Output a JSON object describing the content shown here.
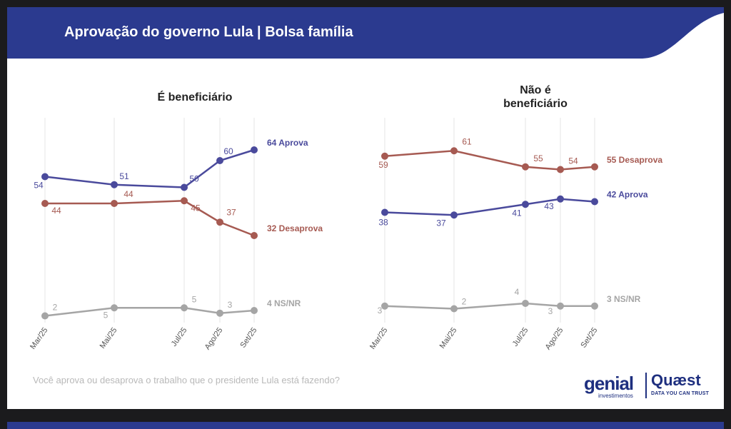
{
  "header": {
    "title": "Aprovação do governo Lula | Bolsa família"
  },
  "colors": {
    "header_bg": "#2b3a8f",
    "aprova": "#4a4a9c",
    "desaprova": "#a65a52",
    "ns": "#a5a5a5",
    "grid": "#e4e4e4"
  },
  "question": "Você aprova ou desaprova o trabalho que o presidente Lula está fazendo?",
  "logos": {
    "genial": "genial",
    "genial_sub": "investimentos",
    "quaest": "Quæst",
    "quaest_sub": "DATA YOU CAN TRUST"
  },
  "chart_data": [
    {
      "type": "line",
      "title": "É beneficiário",
      "x": [
        "Mar/25",
        "Mai/25",
        "Jul/25",
        "Ago/25",
        "Set/25"
      ],
      "ylim": [
        0,
        70
      ],
      "grid": "vertical",
      "series": [
        {
          "key": "aprova",
          "values": [
            54,
            51,
            50,
            60,
            64
          ],
          "end_label": "64 Aprova",
          "color": "#4a4a9c"
        },
        {
          "key": "desaprova",
          "values": [
            44,
            44,
            45,
            37,
            32
          ],
          "end_label": "32 Desaprova",
          "color": "#a65a52"
        },
        {
          "key": "ns",
          "values": [
            2,
            5,
            5,
            3,
            4
          ],
          "end_label": "4 NS/NR",
          "color": "#a5a5a5"
        }
      ]
    },
    {
      "type": "line",
      "title": "Não é beneficiário",
      "x": [
        "Mar/25",
        "Mai/25",
        "Jul/25",
        "Ago/25",
        "Set/25"
      ],
      "ylim": [
        0,
        70
      ],
      "grid": "vertical",
      "series": [
        {
          "key": "desaprova",
          "values": [
            59,
            61,
            55,
            54,
            55
          ],
          "end_label": "55 Desaprova",
          "color": "#a65a52"
        },
        {
          "key": "aprova",
          "values": [
            38,
            37,
            41,
            43,
            42
          ],
          "end_label": "42 Aprova",
          "color": "#4a4a9c"
        },
        {
          "key": "ns",
          "values": [
            3,
            2,
            4,
            3,
            3
          ],
          "end_label": "3 NS/NR",
          "color": "#a5a5a5"
        }
      ]
    }
  ]
}
